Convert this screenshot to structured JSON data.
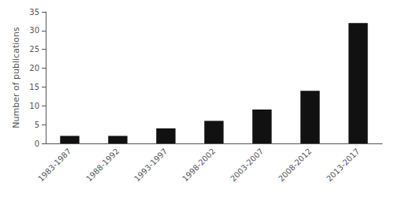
{
  "chart_data": {
    "type": "bar",
    "categories": [
      "1983-1987",
      "1988-1992",
      "1993-1997",
      "1998-2002",
      "2003-2007",
      "2008-2012",
      "2013-2017"
    ],
    "values": [
      2,
      2,
      4,
      6,
      9,
      14,
      32
    ],
    "color": "#111111",
    "ylabel": "Number of publications",
    "ylim": [
      0,
      35
    ],
    "yticks": [
      0,
      5,
      10,
      15,
      20,
      25,
      30,
      35
    ],
    "grid": false
  }
}
